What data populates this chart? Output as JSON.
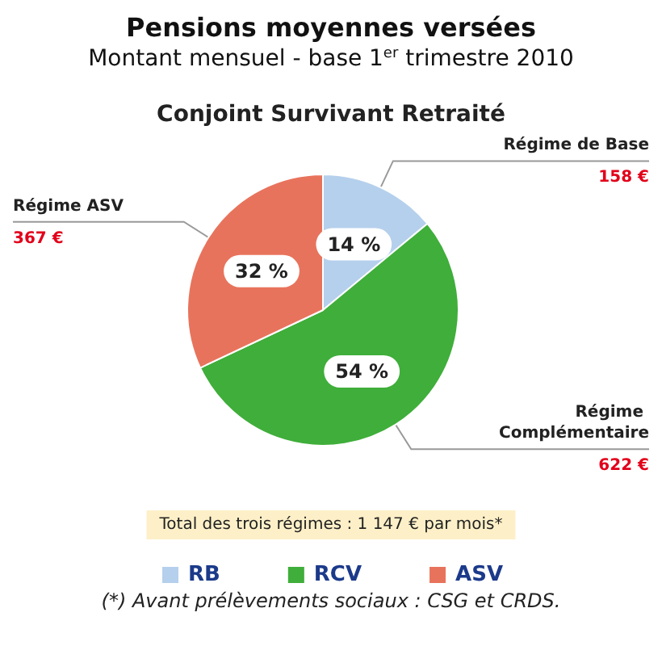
{
  "chart_data": {
    "type": "pie",
    "title": "Pensions moyennes versées",
    "subtitle": "Montant mensuel - base 1$^{er}$ trimestre 2010",
    "categories": [
      "RB",
      "RCV",
      "ASV"
    ],
    "values": [
      14,
      54,
      32
    ],
    "value_labels": [
      "14 %",
      "54 %",
      "32 %"
    ],
    "colors": [
      "#b5d0ec",
      "#3fae3a",
      "#e8735c"
    ],
    "legend": "bottom",
    "annotations": [
      {
        "text": "Régime de Base",
        "x": "RB"
      },
      {
        "text": "158 €",
        "x": "RB"
      },
      {
        "text": "Régime Complémentaire",
        "x": "RCV"
      },
      {
        "text": "622 €",
        "x": "RCV"
      },
      {
        "text": "Régime ASV",
        "x": "ASV"
      },
      {
        "text": "367 €",
        "x": "ASV"
      },
      "Conjoint Survivant Retraité",
      "Total des trois régimes : 1 147 € par mois*",
      "(*) Avant prélèvements sociaux : CSG et CRDS."
    ]
  }
}
